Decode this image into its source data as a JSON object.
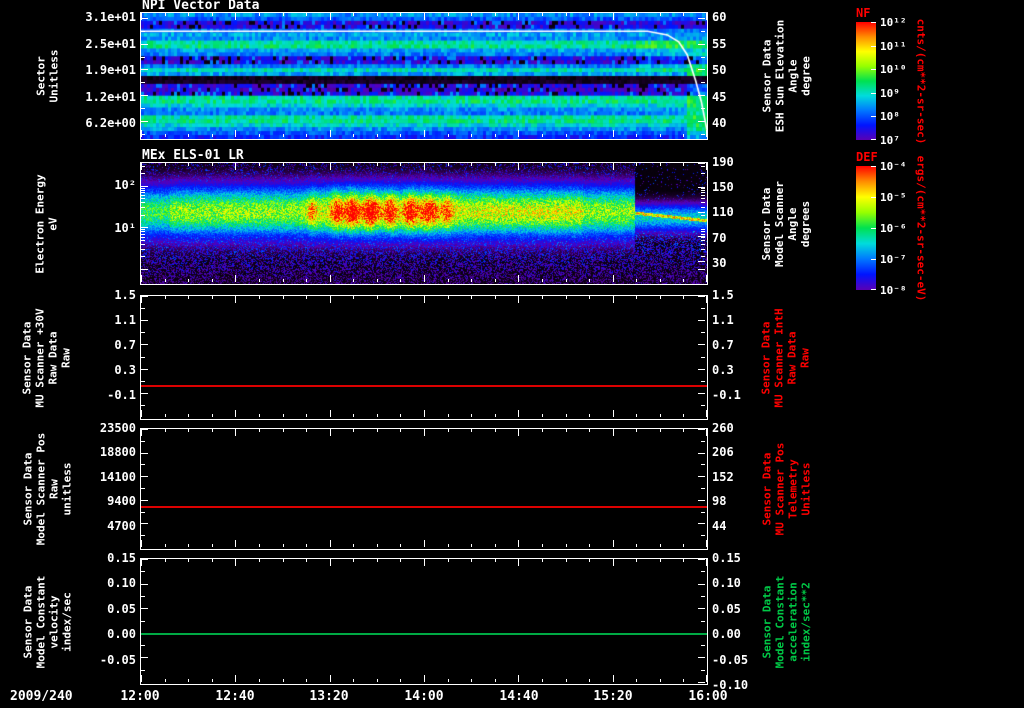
{
  "window": {
    "bg": "#000000",
    "fg": "#ffffff"
  },
  "x_axis": {
    "date_label": "2009/240",
    "tick_labels": [
      "12:00",
      "12:40",
      "13:20",
      "14:00",
      "14:40",
      "15:20",
      "16:00"
    ]
  },
  "colormap": [
    {
      "t": 0.0,
      "c": "#000000"
    },
    {
      "t": 0.06,
      "c": "#1e0032"
    },
    {
      "t": 0.16,
      "c": "#5a00b4"
    },
    {
      "t": 0.28,
      "c": "#0014ff"
    },
    {
      "t": 0.4,
      "c": "#0078ff"
    },
    {
      "t": 0.5,
      "c": "#00dcdc"
    },
    {
      "t": 0.6,
      "c": "#00e150"
    },
    {
      "t": 0.7,
      "c": "#96ff00"
    },
    {
      "t": 0.8,
      "c": "#ffff00"
    },
    {
      "t": 0.9,
      "c": "#ff8c00"
    },
    {
      "t": 1.0,
      "c": "#ff0000"
    }
  ],
  "chart_data": [
    {
      "type": "heatmap",
      "title": "NPI Vector Data",
      "left_label_lines": [
        "Sector",
        "Unitless"
      ],
      "left_label_color": "#ffffff",
      "left_ticks": [
        {
          "label": "3.1e+01",
          "f": 0.04
        },
        {
          "label": "2.5e+01",
          "f": 0.247
        },
        {
          "label": "1.9e+01",
          "f": 0.455
        },
        {
          "label": "1.2e+01",
          "f": 0.662
        },
        {
          "label": "6.2e+00",
          "f": 0.87
        }
      ],
      "right_ticks": [
        {
          "label": "60",
          "f": 0.04
        },
        {
          "label": "55",
          "f": 0.247
        },
        {
          "label": "50",
          "f": 0.455
        },
        {
          "label": "45",
          "f": 0.662
        },
        {
          "label": "40",
          "f": 0.87
        }
      ],
      "right_label_lines": [
        "Sensor Data",
        "ESH Sun Elevation",
        "Angle",
        "degree"
      ],
      "right_label_color": "#ffffff",
      "colorbar": {
        "name": "NF",
        "name_color": "#ff0000",
        "units": "cnts/(cm**2-sr-sec)",
        "units_color": "#ff0000",
        "tick_labels": [
          "10¹²",
          "10¹¹",
          "10¹⁰",
          "10⁹",
          "10⁸",
          "10⁷"
        ],
        "colors": [
          "#ff0000",
          "#ff8c00",
          "#ffff00",
          "#96ff00",
          "#00e150",
          "#00dcdc",
          "#0078ff",
          "#0014ff",
          "#5a00b4"
        ]
      },
      "overlay_line": {
        "color": "#ffffff",
        "points_f": [
          [
            0,
            0.145
          ],
          [
            0.895,
            0.145
          ],
          [
            0.93,
            0.174
          ],
          [
            0.95,
            0.228
          ],
          [
            0.965,
            0.331
          ],
          [
            0.98,
            0.538
          ],
          [
            0.99,
            0.704
          ],
          [
            1.0,
            0.932
          ]
        ]
      },
      "texture": {
        "seed": 7,
        "row_intensity": [
          0.42,
          0.36,
          0.22,
          0.24,
          0.4,
          0.44,
          0.42,
          0.54,
          0.56,
          0.44,
          0.4,
          0.24,
          0.22,
          0.4,
          0.52,
          0.44,
          0.03,
          0.04,
          0.22,
          0.2,
          0.24,
          0.54,
          0.56,
          0.5,
          0.42,
          0.4,
          0.54,
          0.56,
          0.5,
          0.42,
          0.36,
          0.3
        ],
        "right_bright_f": 0.962,
        "mid_bright_f": 0.872
      }
    },
    {
      "type": "heatmap",
      "title": "MEx ELS-01 LR",
      "left_label_lines": [
        "Electron Energy",
        "eV"
      ],
      "left_label_color": "#ffffff",
      "left_ticks": [
        {
          "label": "10²",
          "f": 0.19
        },
        {
          "label": "10¹",
          "f": 0.54
        }
      ],
      "log_map": {
        "f_100": 0.19,
        "decade_f": 0.35
      },
      "right_ticks": [
        {
          "label": "190",
          "f": 0.0
        },
        {
          "label": "150",
          "f": 0.205
        },
        {
          "label": "110",
          "f": 0.41
        },
        {
          "label": "70",
          "f": 0.615
        },
        {
          "label": "30",
          "f": 0.82
        }
      ],
      "right_label_lines": [
        "Sensor Data",
        "Model Scanner",
        "Angle",
        "degrees"
      ],
      "right_label_color": "#ffffff",
      "colorbar": {
        "name": "DEF",
        "name_color": "#ff0000",
        "units": "ergs/(cm**2-sr-sec-eV)",
        "units_color": "#ff0000",
        "tick_labels": [
          "10⁻⁴",
          "10⁻⁵",
          "10⁻⁶",
          "10⁻⁷",
          "10⁻⁸"
        ],
        "colors": [
          "#ff0000",
          "#ff8c00",
          "#ffff00",
          "#96ff00",
          "#00e150",
          "#00dcdc",
          "#0078ff",
          "#0014ff",
          "#5a00b4"
        ]
      },
      "texture": {
        "seed": 13,
        "band_center": 0.4,
        "band_width": 0.155,
        "base_amp": 0.7,
        "right_amp": 0.5,
        "mode_change_f": 0.872,
        "bursts": [
          {
            "x": 0.3,
            "s": 0.006,
            "a": 0.18
          },
          {
            "x": 0.345,
            "s": 0.007,
            "a": 0.3
          },
          {
            "x": 0.372,
            "s": 0.009,
            "a": 0.36
          },
          {
            "x": 0.405,
            "s": 0.011,
            "a": 0.34
          },
          {
            "x": 0.44,
            "s": 0.008,
            "a": 0.3
          },
          {
            "x": 0.475,
            "s": 0.009,
            "a": 0.32
          },
          {
            "x": 0.508,
            "s": 0.011,
            "a": 0.3
          },
          {
            "x": 0.54,
            "s": 0.007,
            "a": 0.22
          }
        ]
      }
    },
    {
      "type": "line",
      "title": "",
      "left_label_lines": [
        "Sensor Data",
        "MU Scanner +30V",
        "Raw Data",
        "Raw"
      ],
      "left_label_color": "#ffffff",
      "left_ticks": [
        {
          "label": "1.5",
          "f": 0.0
        },
        {
          "label": "1.1",
          "f": 0.2
        },
        {
          "label": "0.7",
          "f": 0.4
        },
        {
          "label": "0.3",
          "f": 0.6
        },
        {
          "label": "-0.1",
          "f": 0.8
        }
      ],
      "right_ticks": [
        {
          "label": "1.5",
          "f": 0.0
        },
        {
          "label": "1.1",
          "f": 0.2
        },
        {
          "label": "0.7",
          "f": 0.4
        },
        {
          "label": "0.3",
          "f": 0.6
        },
        {
          "label": "-0.1",
          "f": 0.8
        }
      ],
      "right_label_lines": [
        "Sensor Data",
        "MU Scanner IntH",
        "Raw Data",
        "Raw"
      ],
      "right_label_color": "#ff0000",
      "series": {
        "color": "#dd0000",
        "value": 0.0,
        "f": 0.73
      }
    },
    {
      "type": "line",
      "title": "",
      "left_label_lines": [
        "Sensor Data",
        "Model Scanner Pos",
        "Raw",
        "unitless"
      ],
      "left_label_color": "#ffffff",
      "left_ticks": [
        {
          "label": "23500",
          "f": 0.0
        },
        {
          "label": "18800",
          "f": 0.2
        },
        {
          "label": "14100",
          "f": 0.4
        },
        {
          "label": "9400",
          "f": 0.6
        },
        {
          "label": "4700",
          "f": 0.8
        }
      ],
      "right_ticks": [
        {
          "label": "260",
          "f": 0.0
        },
        {
          "label": "206",
          "f": 0.2
        },
        {
          "label": "152",
          "f": 0.4
        },
        {
          "label": "98",
          "f": 0.6
        },
        {
          "label": "44",
          "f": 0.8
        }
      ],
      "right_label_lines": [
        "Sensor Data",
        "MU Scanner Pos",
        "Telemetry",
        "Unitless"
      ],
      "right_label_color": "#ff0000",
      "series": {
        "color": "#dd0000",
        "value": 8300,
        "f": 0.647
      }
    },
    {
      "type": "line",
      "title": "",
      "left_label_lines": [
        "Sensor Data",
        "Model Constant",
        "velocity",
        "index/sec"
      ],
      "left_label_color": "#ffffff",
      "left_ticks": [
        {
          "label": "0.15",
          "f": 0.0
        },
        {
          "label": "0.10",
          "f": 0.2
        },
        {
          "label": "0.05",
          "f": 0.4
        },
        {
          "label": "0.00",
          "f": 0.6
        },
        {
          "label": "-0.05",
          "f": 0.8
        }
      ],
      "right_ticks": [
        {
          "label": "0.15",
          "f": 0.0
        },
        {
          "label": "0.10",
          "f": 0.2
        },
        {
          "label": "0.05",
          "f": 0.4
        },
        {
          "label": "0.00",
          "f": 0.6
        },
        {
          "label": "-0.05",
          "f": 0.8
        },
        {
          "label": "-0.10",
          "f": 1.0
        }
      ],
      "right_label_lines": [
        "Sensor Data",
        "Model Constant",
        "acceleration",
        "index/sec**2"
      ],
      "right_label_color": "#00c846",
      "series": {
        "color": "#00aa44",
        "value": 0.0,
        "f": 0.6
      }
    }
  ]
}
